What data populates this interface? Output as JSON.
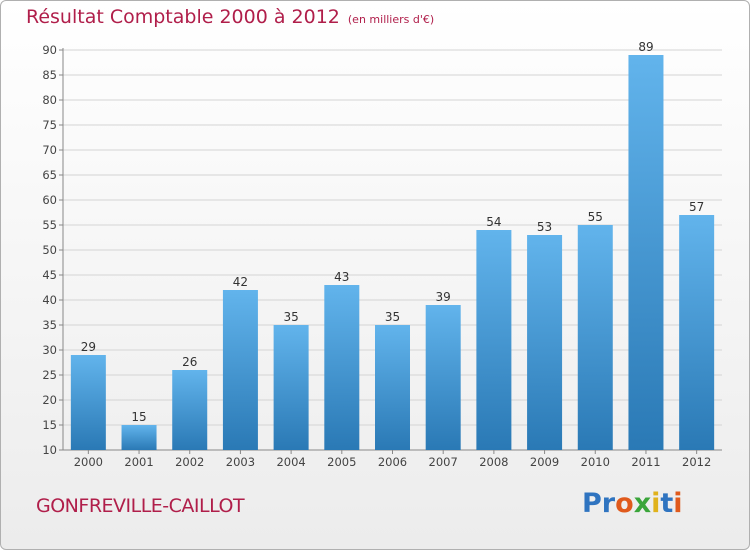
{
  "chart_data": {
    "type": "bar",
    "title": "Résultat Comptable 2000 à 2012",
    "subtitle": "(en milliers d'€)",
    "categories": [
      "2000",
      "2001",
      "2002",
      "2003",
      "2004",
      "2005",
      "2006",
      "2007",
      "2008",
      "2009",
      "2010",
      "2011",
      "2012"
    ],
    "values": [
      29,
      15,
      26,
      42,
      35,
      43,
      35,
      39,
      54,
      53,
      55,
      89,
      57
    ],
    "ylim": [
      10,
      90
    ],
    "yticks": [
      10,
      15,
      20,
      25,
      30,
      35,
      40,
      45,
      50,
      55,
      60,
      65,
      70,
      75,
      80,
      85,
      90
    ],
    "xlabel": "",
    "ylabel": "",
    "grid": true,
    "bar_color_top": "#62b4ec",
    "bar_color_bottom": "#2a79b5"
  },
  "footer": {
    "city": "GONFREVILLE-CAILLOT",
    "logo_letters": [
      {
        "ch": "P",
        "color": "#2f74c0"
      },
      {
        "ch": "r",
        "color": "#2f74c0"
      },
      {
        "ch": "o",
        "color": "#e05a1c"
      },
      {
        "ch": "x",
        "color": "#3aa53a"
      },
      {
        "ch": "i",
        "color": "#e0b21c"
      },
      {
        "ch": "t",
        "color": "#2f74c0"
      },
      {
        "ch": "i",
        "color": "#e05a1c"
      }
    ]
  }
}
